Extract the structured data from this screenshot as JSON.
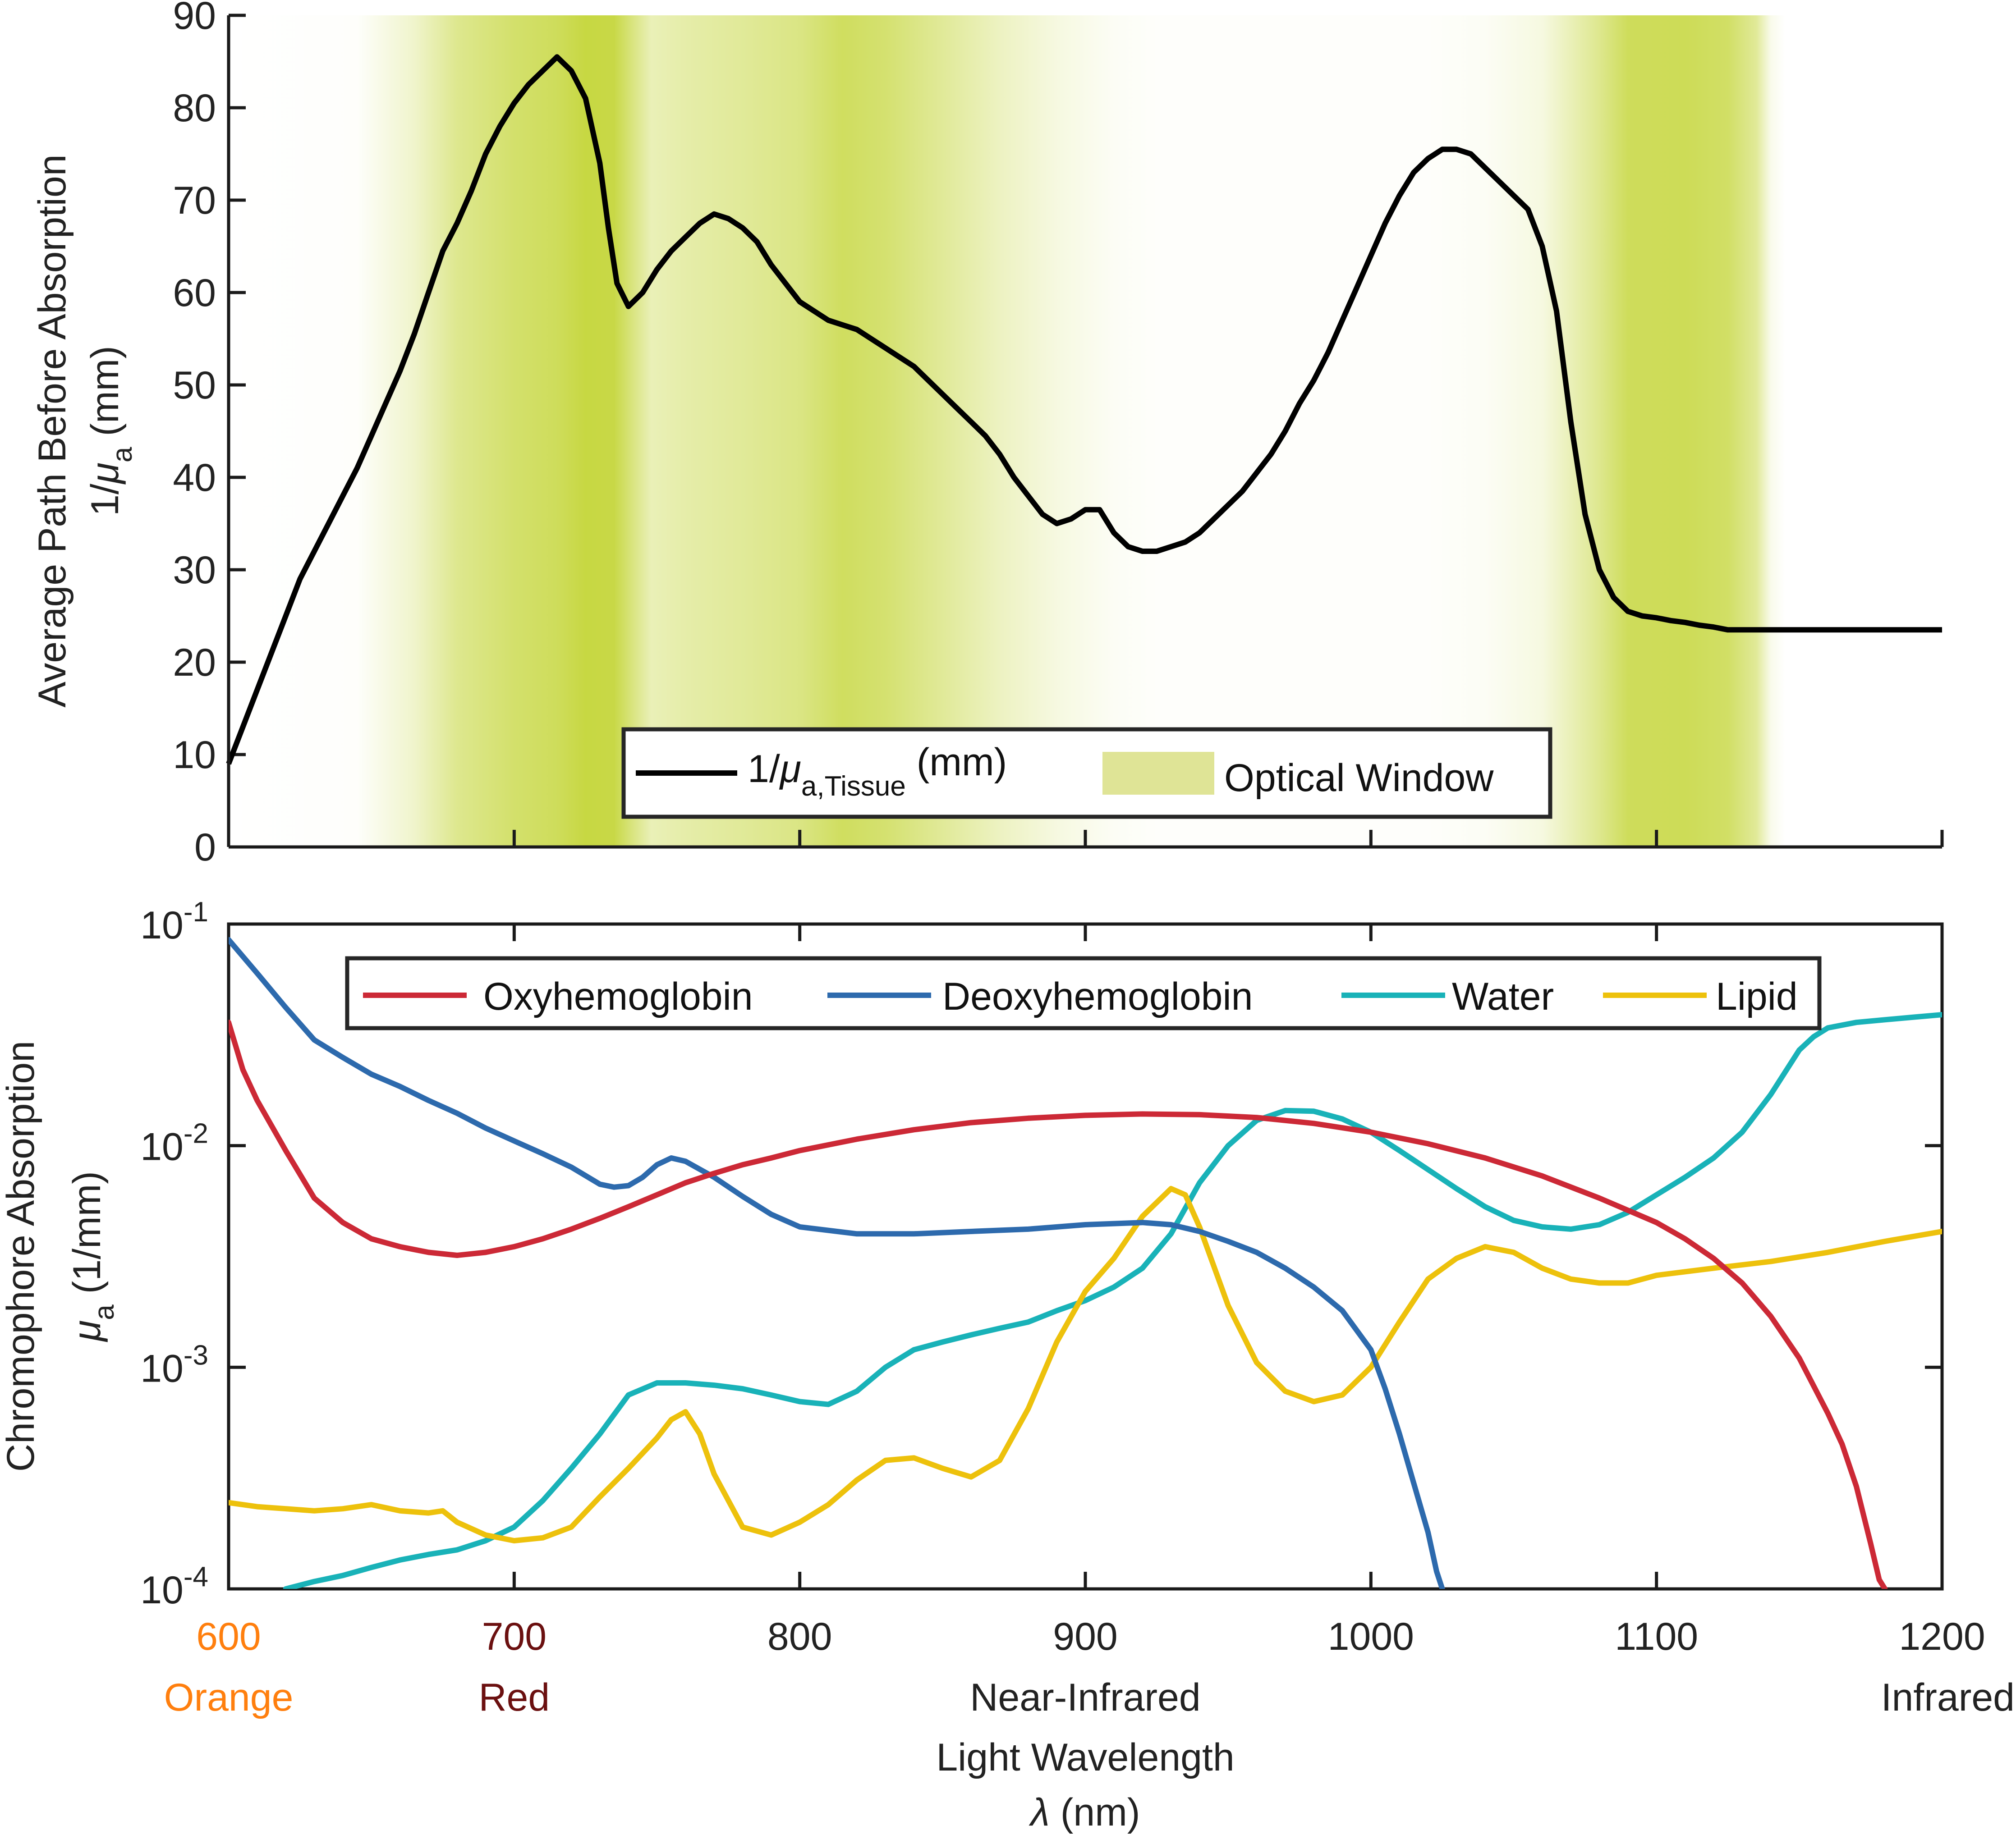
{
  "chart_data": [
    {
      "type": "line",
      "panel": "top",
      "ylabel_line1": "Average Path Before Absorption",
      "ylabel_line2_prefix": "1/",
      "ylabel_line2_mu": "μ",
      "ylabel_line2_sub": "a",
      "ylabel_line2_suffix": " (mm)",
      "xlim": [
        600,
        1200
      ],
      "ylim": [
        0,
        90
      ],
      "yticks": [
        0,
        10,
        20,
        30,
        40,
        50,
        60,
        70,
        80,
        90
      ],
      "ytick_labels": [
        "0",
        "10",
        "20",
        "30",
        "40",
        "50",
        "60",
        "70",
        "80",
        "90"
      ],
      "xticks": [
        700,
        800,
        900,
        1000,
        1100,
        1200
      ],
      "optical_window_color": "#c2d432",
      "optical_window": [
        [
          600,
          0.0
        ],
        [
          645,
          0.02
        ],
        [
          665,
          0.25
        ],
        [
          680,
          0.55
        ],
        [
          700,
          0.72
        ],
        [
          715,
          0.8
        ],
        [
          725,
          0.92
        ],
        [
          735,
          0.9
        ],
        [
          742,
          0.6
        ],
        [
          748,
          0.35
        ],
        [
          760,
          0.42
        ],
        [
          780,
          0.5
        ],
        [
          800,
          0.6
        ],
        [
          815,
          0.78
        ],
        [
          830,
          0.7
        ],
        [
          850,
          0.5
        ],
        [
          870,
          0.3
        ],
        [
          890,
          0.15
        ],
        [
          910,
          0.05
        ],
        [
          925,
          0.02
        ],
        [
          1020,
          0.02
        ],
        [
          1040,
          0.05
        ],
        [
          1060,
          0.15
        ],
        [
          1080,
          0.55
        ],
        [
          1090,
          0.8
        ],
        [
          1110,
          0.82
        ],
        [
          1125,
          0.75
        ],
        [
          1135,
          0.5
        ],
        [
          1140,
          0.1
        ],
        [
          1145,
          0.0
        ],
        [
          1200,
          0.0
        ]
      ],
      "series": [
        {
          "name": "1/μa,Tissue (mm)",
          "color": "#000000",
          "x": [
            600,
            605,
            610,
            615,
            620,
            625,
            630,
            635,
            640,
            645,
            650,
            655,
            660,
            665,
            670,
            675,
            680,
            685,
            690,
            695,
            700,
            705,
            710,
            715,
            720,
            725,
            730,
            733,
            736,
            740,
            745,
            750,
            755,
            760,
            765,
            770,
            775,
            780,
            785,
            790,
            795,
            800,
            805,
            810,
            815,
            820,
            825,
            830,
            835,
            840,
            845,
            850,
            855,
            860,
            865,
            870,
            875,
            880,
            885,
            890,
            895,
            900,
            905,
            910,
            915,
            920,
            925,
            930,
            935,
            940,
            945,
            950,
            955,
            960,
            965,
            970,
            975,
            980,
            985,
            990,
            995,
            1000,
            1005,
            1010,
            1015,
            1020,
            1025,
            1030,
            1035,
            1040,
            1045,
            1050,
            1055,
            1060,
            1065,
            1070,
            1075,
            1080,
            1085,
            1090,
            1095,
            1100,
            1105,
            1110,
            1115,
            1120,
            1125,
            1130,
            1135,
            1140,
            1145,
            1150,
            1155,
            1160,
            1165,
            1170,
            1175,
            1180,
            1185,
            1190,
            1195,
            1200
          ],
          "values": [
            9,
            13,
            17,
            21,
            25,
            29,
            32,
            35,
            38,
            41,
            44.5,
            48,
            51.5,
            55.5,
            60,
            64.5,
            67.5,
            71,
            75,
            78,
            80.5,
            82.5,
            84,
            85.5,
            84,
            81,
            74,
            67,
            61,
            58.5,
            60,
            62.5,
            64.5,
            66,
            67.5,
            68.5,
            68,
            67,
            65.5,
            63,
            61,
            59,
            58,
            57,
            56.5,
            56,
            55,
            54,
            53,
            52,
            50.5,
            49,
            47.5,
            46,
            44.5,
            42.5,
            40,
            38,
            36,
            35,
            35.5,
            36.5,
            36.5,
            34,
            32.5,
            32,
            32,
            32.5,
            33,
            34,
            35.5,
            37,
            38.5,
            40.5,
            42.5,
            45,
            48,
            50.5,
            53.5,
            57,
            60.5,
            64,
            67.5,
            70.5,
            73,
            74.5,
            75.5,
            75.5,
            75,
            73.5,
            72,
            70.5,
            69,
            65,
            58,
            46,
            36,
            30,
            27,
            25.5,
            25,
            24.8,
            24.5,
            24.3,
            24,
            23.8,
            23.5,
            23.5,
            23.5,
            23.5,
            23.5,
            23.5,
            23.5,
            23.5,
            23.5,
            23.5,
            23.5,
            23.5,
            23.5,
            23.5,
            23.5,
            23.5
          ]
        }
      ],
      "legend": {
        "series_label_prefix": "1/",
        "series_label_mu": "μ",
        "series_label_sub": "a,Tissue",
        "series_label_suffix": " (mm)",
        "window_label": "Optical Window"
      }
    },
    {
      "type": "line",
      "panel": "bottom",
      "yscale": "log",
      "ylabel_line1": "Chromophore Absorption",
      "ylabel_line2_mu": "μ",
      "ylabel_line2_sub": "a",
      "ylabel_line2_suffix": " (1/mm)",
      "xlim": [
        600,
        1200
      ],
      "ylim": [
        0.0001,
        0.1
      ],
      "ytick_values": [
        0.0001,
        0.001,
        0.01,
        0.1
      ],
      "ytick_bases": [
        "10",
        "10",
        "10",
        "10"
      ],
      "ytick_exps": [
        "-4",
        "-3",
        "-2",
        "-1"
      ],
      "xticks": [
        600,
        700,
        800,
        900,
        1000,
        1100,
        1200
      ],
      "xtick_labels": [
        "600",
        "700",
        "800",
        "900",
        "1000",
        "1100",
        "1200"
      ],
      "xtick_label_colors": [
        "#ff7f0e",
        "#6b1010",
        "#222222",
        "#222222",
        "#222222",
        "#222222",
        "#222222"
      ],
      "region_labels": [
        {
          "x": 600,
          "text": "Orange",
          "color": "#ff7f0e"
        },
        {
          "x": 700,
          "text": "Red",
          "color": "#6b1010"
        },
        {
          "x": 900,
          "text": "Near-Infrared",
          "color": "#222222"
        },
        {
          "x": 1200,
          "text": "Infrared",
          "color": "#222222"
        }
      ],
      "xlabel_line1": "Light Wavelength",
      "xlabel_lambda": "λ",
      "xlabel_suffix": " (nm)",
      "series": [
        {
          "name": "Oxyhemoglobin",
          "color": "#cc2936",
          "x": [
            600,
            605,
            610,
            620,
            630,
            640,
            650,
            660,
            670,
            680,
            690,
            700,
            710,
            720,
            730,
            740,
            750,
            760,
            770,
            780,
            790,
            800,
            820,
            840,
            860,
            880,
            900,
            920,
            940,
            960,
            980,
            1000,
            1020,
            1040,
            1060,
            1080,
            1100,
            1110,
            1120,
            1130,
            1140,
            1150,
            1160,
            1165,
            1170,
            1175,
            1178,
            1180
          ],
          "values": [
            0.036,
            0.022,
            0.016,
            0.0095,
            0.0058,
            0.0045,
            0.0038,
            0.0035,
            0.0033,
            0.0032,
            0.0033,
            0.0035,
            0.0038,
            0.0042,
            0.0047,
            0.0053,
            0.006,
            0.0068,
            0.0075,
            0.0082,
            0.0088,
            0.0095,
            0.0107,
            0.0118,
            0.0127,
            0.0133,
            0.0137,
            0.0139,
            0.0138,
            0.0134,
            0.0126,
            0.0115,
            0.0102,
            0.0088,
            0.0073,
            0.0058,
            0.0045,
            0.0038,
            0.0031,
            0.0024,
            0.0017,
            0.0011,
            0.00062,
            0.00045,
            0.00029,
            0.00016,
            0.00011,
            0.0001
          ]
        },
        {
          "name": "Deoxyhemoglobin",
          "color": "#2d6aad",
          "x": [
            600,
            610,
            620,
            630,
            640,
            650,
            660,
            670,
            680,
            690,
            700,
            710,
            720,
            730,
            735,
            740,
            745,
            750,
            755,
            760,
            770,
            780,
            790,
            800,
            820,
            840,
            860,
            880,
            900,
            920,
            930,
            940,
            950,
            960,
            970,
            980,
            990,
            1000,
            1005,
            1010,
            1015,
            1020,
            1023,
            1025
          ],
          "values": [
            0.085,
            0.06,
            0.042,
            0.03,
            0.025,
            0.021,
            0.0185,
            0.016,
            0.014,
            0.012,
            0.0105,
            0.0092,
            0.008,
            0.0067,
            0.0065,
            0.0066,
            0.0072,
            0.0082,
            0.0088,
            0.0085,
            0.0072,
            0.0059,
            0.0049,
            0.0043,
            0.004,
            0.004,
            0.0041,
            0.0042,
            0.0044,
            0.0045,
            0.0044,
            0.0041,
            0.0037,
            0.0033,
            0.0028,
            0.0023,
            0.0018,
            0.0012,
            0.0008,
            0.0005,
            0.0003,
            0.00018,
            0.00012,
            0.0001
          ]
        },
        {
          "name": "Water",
          "color": "#19b2b8",
          "x": [
            620,
            630,
            640,
            650,
            660,
            670,
            680,
            690,
            700,
            710,
            720,
            730,
            740,
            750,
            760,
            770,
            780,
            790,
            800,
            810,
            820,
            830,
            840,
            850,
            860,
            870,
            880,
            890,
            900,
            910,
            920,
            930,
            940,
            950,
            960,
            970,
            980,
            990,
            1000,
            1010,
            1020,
            1030,
            1040,
            1050,
            1060,
            1070,
            1080,
            1090,
            1100,
            1110,
            1120,
            1130,
            1140,
            1150,
            1155,
            1160,
            1170,
            1180,
            1190,
            1200
          ],
          "values": [
            0.0001,
            0.000108,
            0.000115,
            0.000125,
            0.000135,
            0.000143,
            0.00015,
            0.000165,
            0.00019,
            0.00025,
            0.00035,
            0.0005,
            0.00075,
            0.00085,
            0.00085,
            0.00083,
            0.0008,
            0.00075,
            0.0007,
            0.00068,
            0.00078,
            0.001,
            0.0012,
            0.0013,
            0.0014,
            0.0015,
            0.0016,
            0.0018,
            0.002,
            0.0023,
            0.0028,
            0.004,
            0.0068,
            0.01,
            0.013,
            0.0144,
            0.0143,
            0.0132,
            0.0115,
            0.0095,
            0.0078,
            0.0064,
            0.0053,
            0.0046,
            0.0043,
            0.0042,
            0.0044,
            0.005,
            0.006,
            0.0072,
            0.0088,
            0.0115,
            0.017,
            0.027,
            0.031,
            0.034,
            0.036,
            0.037,
            0.038,
            0.039
          ]
        },
        {
          "name": "Lipid",
          "color": "#edc10c",
          "x": [
            600,
            610,
            620,
            630,
            640,
            650,
            660,
            670,
            675,
            680,
            690,
            700,
            710,
            720,
            730,
            740,
            750,
            755,
            760,
            765,
            770,
            780,
            790,
            800,
            810,
            820,
            830,
            840,
            850,
            860,
            870,
            880,
            890,
            900,
            910,
            920,
            930,
            935,
            940,
            950,
            960,
            970,
            980,
            990,
            1000,
            1010,
            1020,
            1030,
            1040,
            1050,
            1060,
            1070,
            1080,
            1090,
            1100,
            1120,
            1140,
            1160,
            1180,
            1200
          ],
          "values": [
            0.000245,
            0.000235,
            0.00023,
            0.000225,
            0.00023,
            0.00024,
            0.000225,
            0.00022,
            0.000225,
            0.0002,
            0.000175,
            0.000165,
            0.00017,
            0.00019,
            0.00026,
            0.00035,
            0.00048,
            0.00058,
            0.00063,
            0.0005,
            0.00033,
            0.00019,
            0.000175,
            0.0002,
            0.00024,
            0.00031,
            0.00038,
            0.00039,
            0.00035,
            0.00032,
            0.00038,
            0.00065,
            0.0013,
            0.0022,
            0.0031,
            0.0048,
            0.0064,
            0.006,
            0.0043,
            0.0019,
            0.00105,
            0.00078,
            0.0007,
            0.00075,
            0.001,
            0.0016,
            0.0025,
            0.0031,
            0.0035,
            0.0033,
            0.0028,
            0.0025,
            0.0024,
            0.0024,
            0.0026,
            0.0028,
            0.003,
            0.0033,
            0.0037,
            0.0041
          ]
        }
      ]
    }
  ]
}
